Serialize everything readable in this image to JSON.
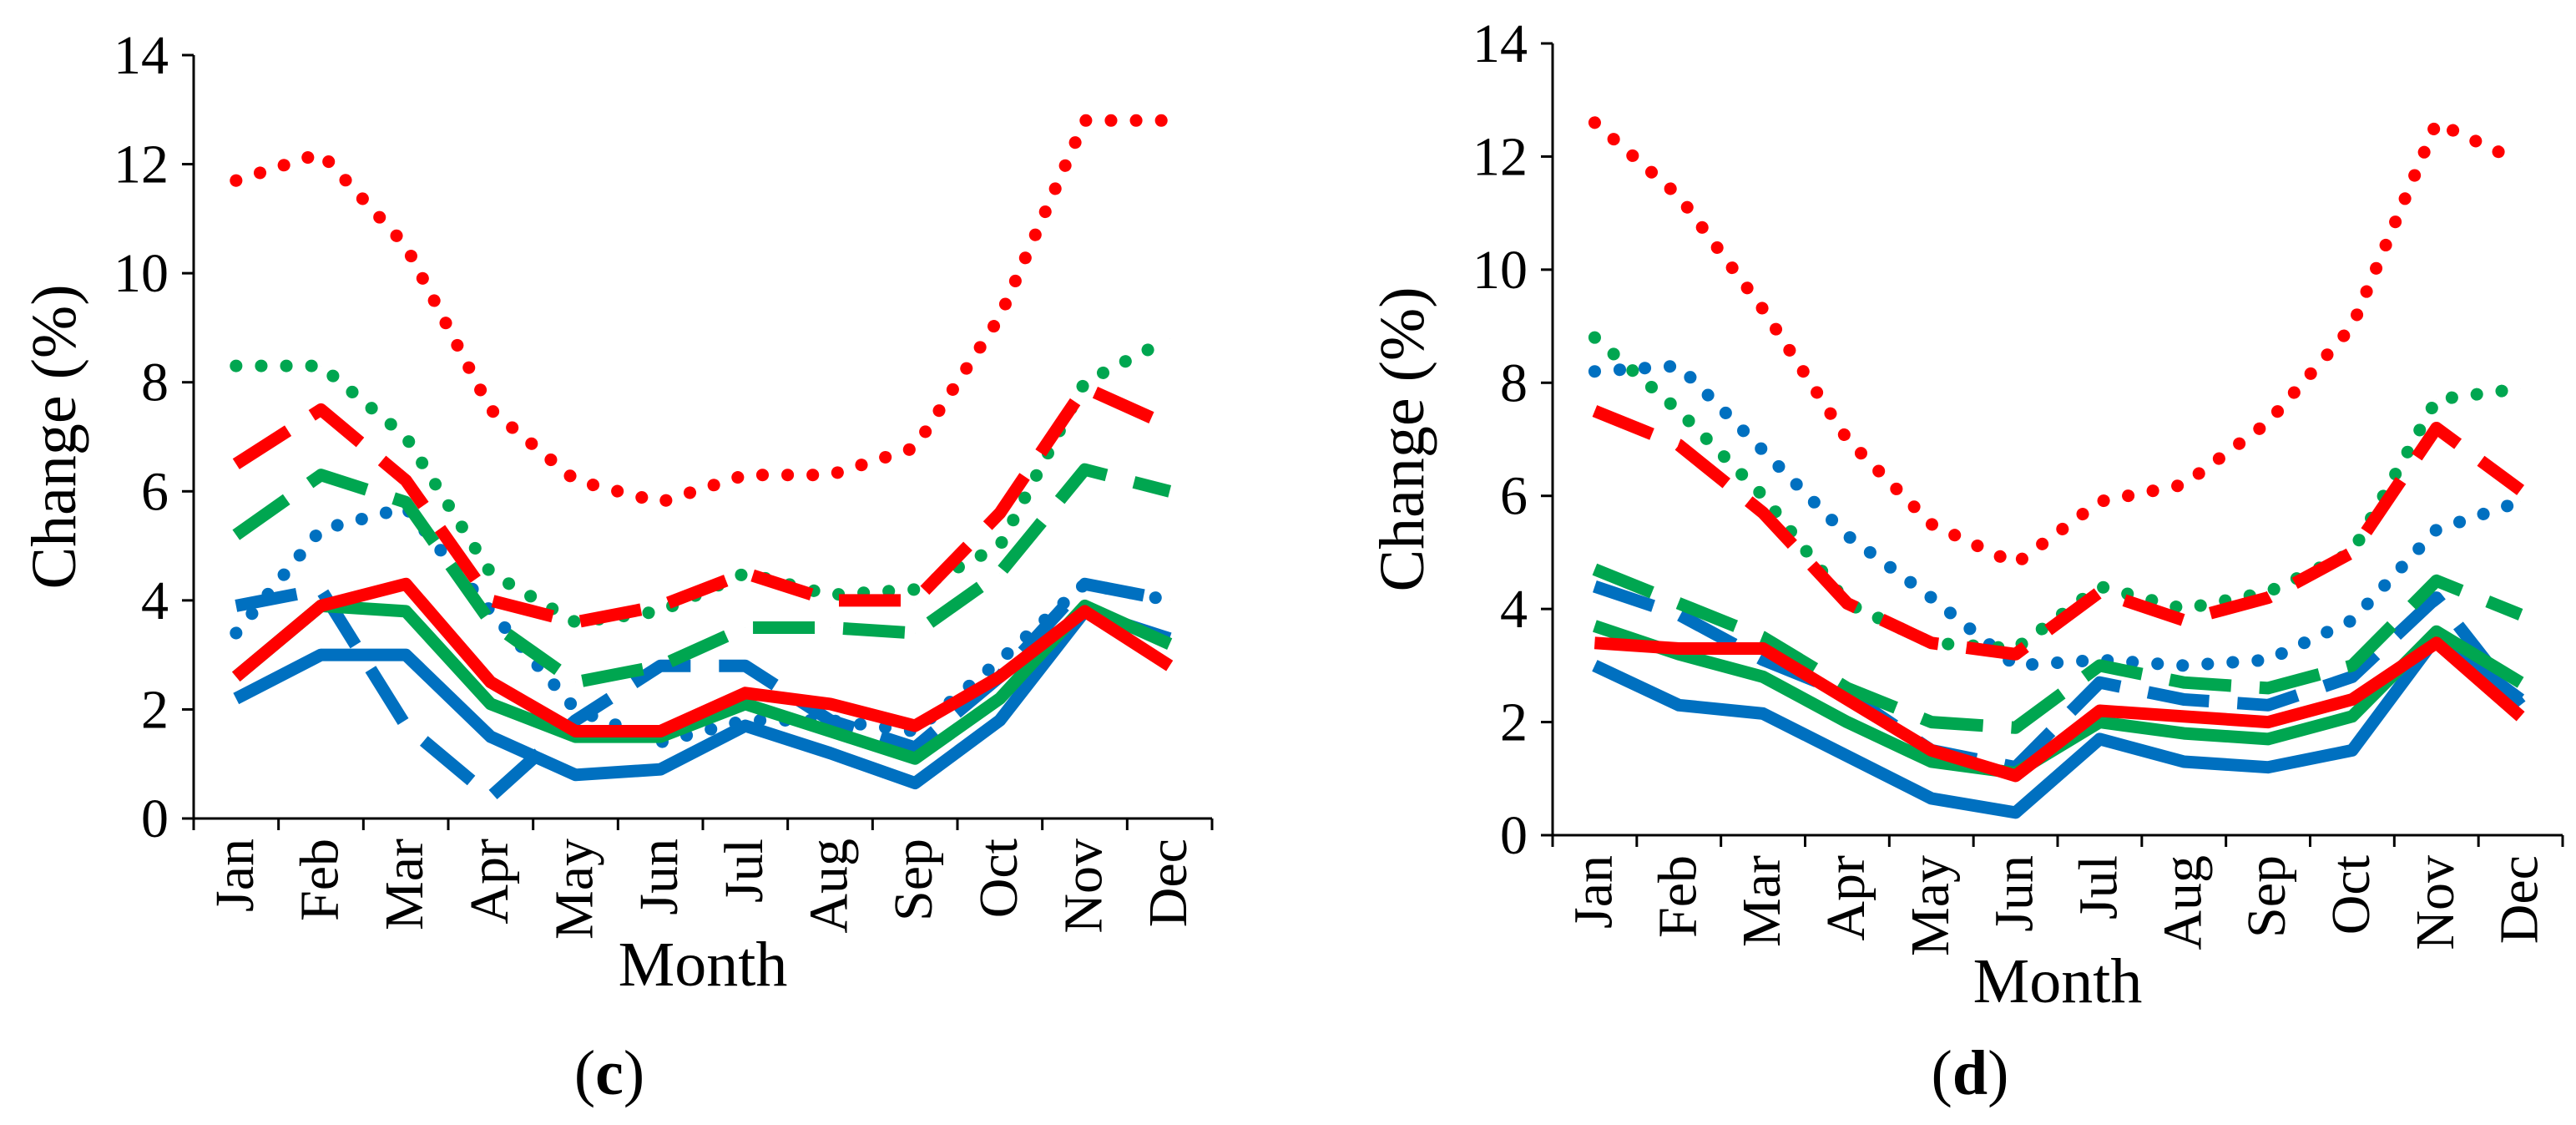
{
  "figure": {
    "panels": [
      "c",
      "d"
    ]
  },
  "colors": {
    "blue": "#0070C0",
    "green": "#00A650",
    "red": "#FF0000",
    "axis": "#000000"
  },
  "chart_data": [
    {
      "type": "line",
      "panel_label": "c",
      "xlabel": "Month",
      "ylabel": "Change (%)",
      "ylim": [
        0,
        14
      ],
      "yticks": [
        "0",
        "2",
        "4",
        "6",
        "8",
        "10",
        "12",
        "14"
      ],
      "categories": [
        "Jan",
        "Feb",
        "Mar",
        "Apr",
        "May",
        "Jun",
        "Jul",
        "Aug",
        "Sep",
        "Oct",
        "Nov",
        "Dec"
      ],
      "series": [
        {
          "name": "blue-solid",
          "color": "blue",
          "style": "solid",
          "values": [
            2.2,
            3.0,
            3.0,
            1.5,
            0.8,
            0.9,
            1.7,
            1.2,
            0.65,
            1.8,
            3.8,
            3.3
          ]
        },
        {
          "name": "blue-dashed",
          "color": "blue",
          "style": "dashed",
          "values": [
            3.9,
            4.2,
            1.7,
            0.4,
            1.8,
            2.8,
            2.8,
            1.8,
            1.3,
            2.6,
            4.3,
            4.0
          ]
        },
        {
          "name": "blue-dotted",
          "color": "blue",
          "style": "dotted",
          "values": [
            3.4,
            5.3,
            5.7,
            3.8,
            2.0,
            1.4,
            1.8,
            1.8,
            1.6,
            2.9,
            4.3,
            4.0
          ]
        },
        {
          "name": "green-solid",
          "color": "green",
          "style": "solid",
          "values": [
            2.6,
            3.9,
            3.8,
            2.1,
            1.5,
            1.5,
            2.1,
            1.6,
            1.1,
            2.2,
            3.9,
            3.2
          ]
        },
        {
          "name": "green-dashed",
          "color": "green",
          "style": "dashed",
          "values": [
            5.2,
            6.3,
            5.8,
            3.6,
            2.5,
            2.8,
            3.5,
            3.5,
            3.4,
            4.5,
            6.4,
            6.0
          ]
        },
        {
          "name": "green-dotted",
          "color": "green",
          "style": "dotted",
          "values": [
            8.3,
            8.3,
            7.0,
            4.5,
            3.6,
            3.8,
            4.5,
            4.1,
            4.2,
            5.0,
            8.0,
            8.8
          ]
        },
        {
          "name": "red-solid",
          "color": "red",
          "style": "solid",
          "values": [
            2.6,
            3.9,
            4.3,
            2.5,
            1.6,
            1.6,
            2.3,
            2.1,
            1.7,
            2.6,
            3.8,
            2.8
          ]
        },
        {
          "name": "red-dashed",
          "color": "red",
          "style": "dashed",
          "values": [
            6.5,
            7.5,
            6.2,
            4.0,
            3.6,
            3.9,
            4.5,
            4.0,
            4.0,
            5.6,
            7.9,
            7.2
          ]
        },
        {
          "name": "red-dotted",
          "color": "red",
          "style": "dotted",
          "values": [
            11.7,
            12.2,
            10.5,
            7.5,
            6.2,
            5.8,
            6.3,
            6.3,
            6.8,
            9.2,
            12.8,
            12.8
          ]
        }
      ]
    },
    {
      "type": "line",
      "panel_label": "d",
      "xlabel": "Month",
      "ylabel": "Change (%)",
      "ylim": [
        0,
        14
      ],
      "yticks": [
        "0",
        "2",
        "4",
        "6",
        "8",
        "10",
        "12",
        "14"
      ],
      "categories": [
        "Jan",
        "Feb",
        "Mar",
        "Apr",
        "May",
        "Jun",
        "Jul",
        "Aug",
        "Sep",
        "Oct",
        "Nov",
        "Dec"
      ],
      "series": [
        {
          "name": "blue-solid",
          "color": "blue",
          "style": "solid",
          "values": [
            3.0,
            2.3,
            2.15,
            1.4,
            0.65,
            0.4,
            1.7,
            1.3,
            1.2,
            1.5,
            3.5,
            2.4
          ]
        },
        {
          "name": "blue-dashed",
          "color": "blue",
          "style": "dashed",
          "values": [
            4.4,
            3.9,
            3.1,
            2.5,
            1.5,
            1.2,
            2.7,
            2.4,
            2.3,
            2.8,
            4.2,
            2.3
          ]
        },
        {
          "name": "blue-dotted",
          "color": "blue",
          "style": "dotted",
          "values": [
            8.2,
            8.3,
            6.8,
            5.3,
            4.2,
            3.0,
            3.1,
            3.0,
            3.1,
            3.8,
            5.4,
            5.9
          ]
        },
        {
          "name": "green-solid",
          "color": "green",
          "style": "solid",
          "values": [
            3.7,
            3.2,
            2.8,
            2.0,
            1.3,
            1.1,
            2.0,
            1.8,
            1.7,
            2.1,
            3.6,
            2.7
          ]
        },
        {
          "name": "green-dashed",
          "color": "green",
          "style": "dashed",
          "values": [
            4.7,
            4.1,
            3.5,
            2.6,
            2.0,
            1.9,
            3.0,
            2.7,
            2.6,
            3.0,
            4.5,
            3.9
          ]
        },
        {
          "name": "green-dotted",
          "color": "green",
          "style": "dotted",
          "values": [
            8.8,
            7.5,
            6.0,
            4.1,
            3.4,
            3.3,
            4.4,
            4.0,
            4.3,
            5.0,
            7.7,
            7.9
          ]
        },
        {
          "name": "red-solid",
          "color": "red",
          "style": "solid",
          "values": [
            3.4,
            3.3,
            3.3,
            2.4,
            1.5,
            1.05,
            2.2,
            2.1,
            2.0,
            2.4,
            3.4,
            2.1
          ]
        },
        {
          "name": "red-dashed",
          "color": "red",
          "style": "dashed",
          "values": [
            7.5,
            6.9,
            5.7,
            4.1,
            3.4,
            3.2,
            4.3,
            3.8,
            4.2,
            5.0,
            7.2,
            6.1
          ]
        },
        {
          "name": "red-dotted",
          "color": "red",
          "style": "dotted",
          "values": [
            12.6,
            11.3,
            9.3,
            7.0,
            5.5,
            4.8,
            5.9,
            6.2,
            7.3,
            9.0,
            12.6,
            11.9
          ]
        }
      ]
    }
  ]
}
